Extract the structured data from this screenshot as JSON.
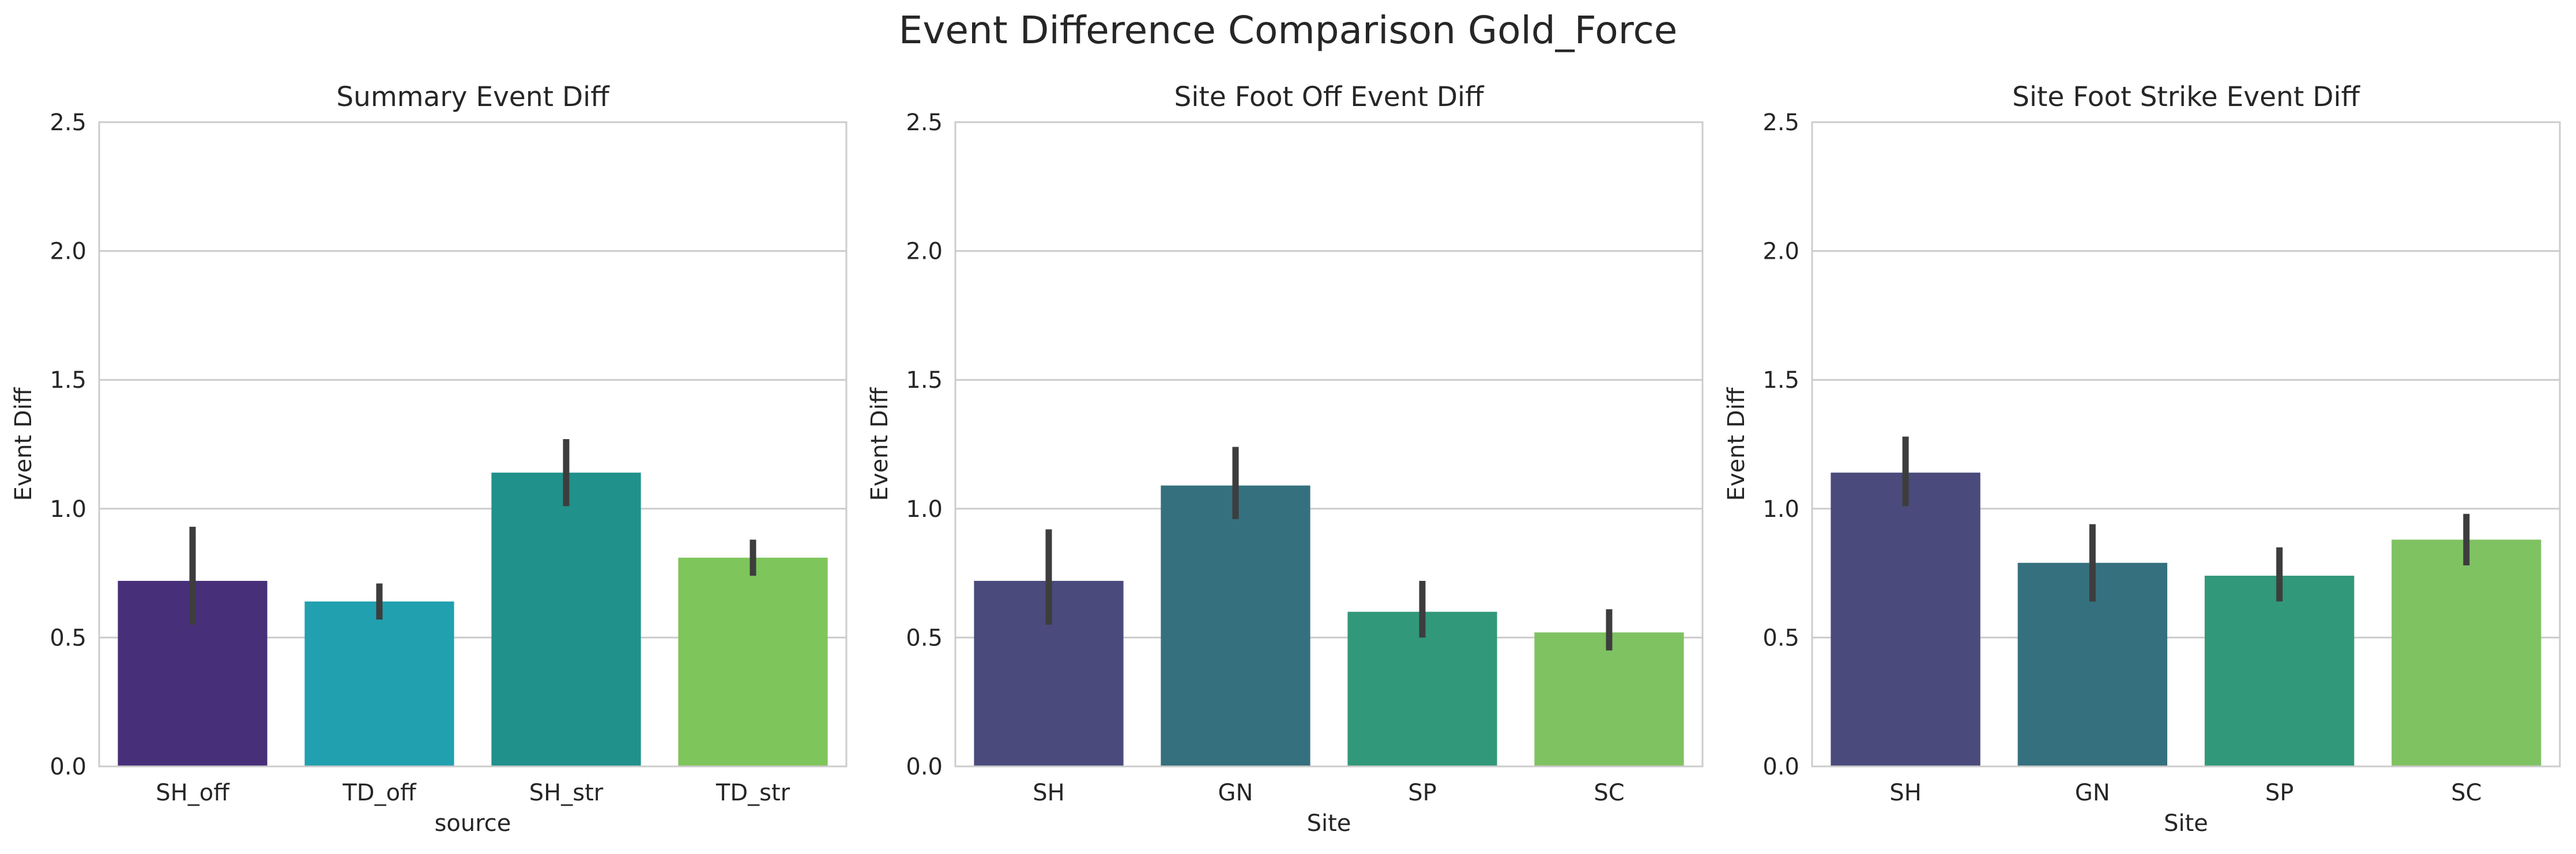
{
  "figure_title": "Event Difference Comparison Gold_Force",
  "chart_data": [
    {
      "type": "bar",
      "title": "Summary Event Diff",
      "xlabel": "source",
      "ylabel": "Event Diff",
      "ylim": [
        0,
        2.5
      ],
      "yticks": [
        "0.0",
        "0.5",
        "1.0",
        "1.5",
        "2.0",
        "2.5"
      ],
      "grid": "horizontal",
      "categories": [
        "SH_off",
        "TD_off",
        "SH_str",
        "TD_str"
      ],
      "values": [
        0.72,
        0.64,
        1.14,
        0.81
      ],
      "ci_low": [
        0.55,
        0.57,
        1.01,
        0.74
      ],
      "ci_high": [
        0.93,
        0.71,
        1.27,
        0.88
      ],
      "colors": [
        "#482f7a",
        "#21a0b0",
        "#21918c",
        "#7ec55b"
      ]
    },
    {
      "type": "bar",
      "title": "Site Foot Off Event Diff",
      "xlabel": "Site",
      "ylabel": "Event Diff",
      "ylim": [
        0,
        2.5
      ],
      "yticks": [
        "0.0",
        "0.5",
        "1.0",
        "1.5",
        "2.0",
        "2.5"
      ],
      "grid": "horizontal",
      "categories": [
        "SH",
        "GN",
        "SP",
        "SC"
      ],
      "values": [
        0.72,
        1.09,
        0.6,
        0.52
      ],
      "ci_low": [
        0.55,
        0.96,
        0.5,
        0.45
      ],
      "ci_high": [
        0.92,
        1.24,
        0.72,
        0.61
      ],
      "colors": [
        "#4a4a7c",
        "#35707e",
        "#32987a",
        "#7fc262"
      ]
    },
    {
      "type": "bar",
      "title": "Site Foot Strike Event Diff",
      "xlabel": "Site",
      "ylabel": "Event Diff",
      "ylim": [
        0,
        2.5
      ],
      "yticks": [
        "0.0",
        "0.5",
        "1.0",
        "1.5",
        "2.0",
        "2.5"
      ],
      "grid": "horizontal",
      "categories": [
        "SH",
        "GN",
        "SP",
        "SC"
      ],
      "values": [
        1.14,
        0.79,
        0.74,
        0.88
      ],
      "ci_low": [
        1.01,
        0.64,
        0.64,
        0.78
      ],
      "ci_high": [
        1.28,
        0.94,
        0.85,
        0.98
      ],
      "colors": [
        "#4a4a7c",
        "#35707e",
        "#32987a",
        "#7fc262"
      ]
    }
  ]
}
